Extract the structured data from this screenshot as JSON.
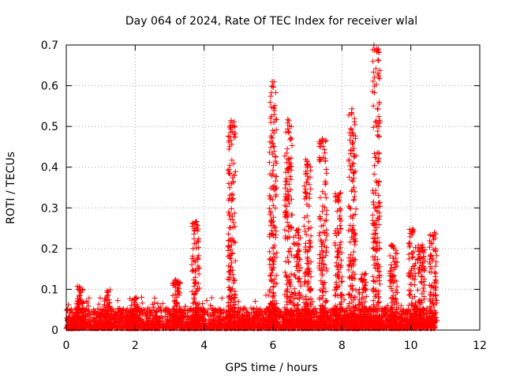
{
  "chart_data": {
    "type": "scatter",
    "title": "Day 064 of 2024, Rate Of TEC Index for receiver wlal",
    "xlabel": "GPS time / hours",
    "ylabel": "ROTI / TECUs",
    "xlim": [
      0,
      12
    ],
    "ylim": [
      0,
      0.7
    ],
    "xticks": [
      0,
      2,
      4,
      6,
      8,
      10,
      12
    ],
    "xtick_labels": [
      "0",
      "2",
      "4",
      "6",
      "8",
      "10",
      "12"
    ],
    "yticks": [
      0,
      0.1,
      0.2,
      0.3,
      0.4,
      0.5,
      0.6,
      0.7
    ],
    "ytick_labels": [
      "0",
      "0.1",
      "0.2",
      "0.3",
      "0.4",
      "0.5",
      "0.6",
      "0.7"
    ],
    "grid": true,
    "marker": "+",
    "color": "#ff0000",
    "data_range_hours": [
      0,
      10.7
    ],
    "spikes": [
      {
        "x": 0.4,
        "peak": 0.11
      },
      {
        "x": 1.2,
        "peak": 0.1
      },
      {
        "x": 2.0,
        "peak": 0.08
      },
      {
        "x": 3.2,
        "peak": 0.13
      },
      {
        "x": 3.75,
        "peak": 0.27
      },
      {
        "x": 4.8,
        "peak": 0.52
      },
      {
        "x": 6.0,
        "peak": 0.61
      },
      {
        "x": 6.45,
        "peak": 0.52
      },
      {
        "x": 6.7,
        "peak": 0.25
      },
      {
        "x": 7.0,
        "peak": 0.42
      },
      {
        "x": 7.45,
        "peak": 0.47
      },
      {
        "x": 7.9,
        "peak": 0.34
      },
      {
        "x": 8.3,
        "peak": 0.55
      },
      {
        "x": 8.6,
        "peak": 0.14
      },
      {
        "x": 9.0,
        "peak": 0.7
      },
      {
        "x": 9.5,
        "peak": 0.21
      },
      {
        "x": 10.05,
        "peak": 0.25
      },
      {
        "x": 10.3,
        "peak": 0.21
      },
      {
        "x": 10.65,
        "peak": 0.24
      }
    ]
  }
}
